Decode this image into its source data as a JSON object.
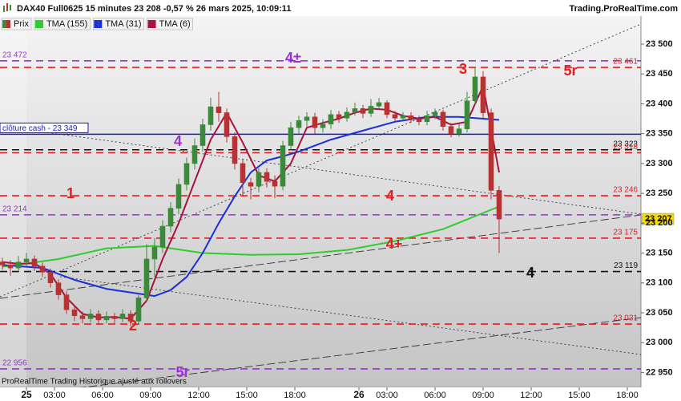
{
  "chart_data": {
    "type": "candlestick",
    "title": "DAX40 Full0625 15 minutes 23 208 -0,57 % 26 mars 2025, 10:09:11",
    "source": "Trading.ProRealTime.com",
    "footer": "ProRealTime Trading Historique ajusté aux rollovers",
    "xlim": [
      -1.65,
      38.35
    ],
    "xticks": [
      {
        "value": 0,
        "label": "25"
      },
      {
        "value": 1.75,
        "label": "03:00"
      },
      {
        "value": 4.75,
        "label": "06:00"
      },
      {
        "value": 7.75,
        "label": "09:00"
      },
      {
        "value": 10.75,
        "label": "12:00"
      },
      {
        "value": 13.75,
        "label": "15:00"
      },
      {
        "value": 16.75,
        "label": "18:00"
      },
      {
        "value": 20.75,
        "label": "26"
      },
      {
        "value": 22.5,
        "label": "03:00"
      },
      {
        "value": 25.5,
        "label": "06:00"
      },
      {
        "value": 28.5,
        "label": "09:00"
      },
      {
        "value": 31.5,
        "label": "12:00"
      },
      {
        "value": 34.5,
        "label": "15:00"
      },
      {
        "value": 37.5,
        "label": "18:00"
      }
    ],
    "ylim": [
      22925,
      23547
    ],
    "yticks": [
      {
        "value": 22950,
        "label": "22 950"
      },
      {
        "value": 23000,
        "label": "23 000"
      },
      {
        "value": 23050,
        "label": "23 050"
      },
      {
        "value": 23100,
        "label": "23 100"
      },
      {
        "value": 23150,
        "label": "23 150"
      },
      {
        "value": 23200,
        "label": "23 200"
      },
      {
        "value": 23250,
        "label": "23 250"
      },
      {
        "value": 23300,
        "label": "23 300"
      },
      {
        "value": 23350,
        "label": "23 350"
      },
      {
        "value": 23400,
        "label": "23 400"
      },
      {
        "value": 23450,
        "label": "23 450"
      },
      {
        "value": 23500,
        "label": "23 500"
      }
    ],
    "last_price": {
      "value": 23207,
      "label": "23 207",
      "color": "#f5d90a"
    },
    "price": {
      "name": "Prix",
      "up_color": "#3b8a3b",
      "down_color": "#b83232",
      "x": [
        -1.5,
        -1,
        -0.5,
        0,
        0.5,
        1,
        1.5,
        2,
        2.5,
        3,
        3.5,
        4,
        4.5,
        5,
        5.5,
        6,
        6.5,
        7,
        7.5,
        8,
        8.5,
        9,
        9.5,
        10,
        10.5,
        11,
        11.5,
        12,
        12.5,
        13,
        13.5,
        14,
        14.5,
        15,
        15.5,
        16,
        16.5,
        17,
        17.5,
        18,
        18.5,
        19,
        19.5,
        20,
        20.5,
        21,
        21.5,
        22,
        22.5,
        23,
        23.5,
        24,
        24.5,
        25,
        25.5,
        26,
        26.5,
        27,
        27.5,
        28,
        28.5,
        29,
        29.5
      ],
      "open": [
        23135,
        23130,
        23125,
        23135,
        23140,
        23128,
        23118,
        23100,
        23080,
        23055,
        23045,
        23040,
        23048,
        23038,
        23044,
        23040,
        23048,
        23036,
        23075,
        23140,
        23160,
        23195,
        23225,
        23265,
        23300,
        23330,
        23365,
        23395,
        23385,
        23345,
        23300,
        23268,
        23262,
        23285,
        23270,
        23262,
        23330,
        23360,
        23372,
        23378,
        23360,
        23366,
        23382,
        23376,
        23386,
        23392,
        23384,
        23396,
        23402,
        23382,
        23376,
        23380,
        23374,
        23370,
        23380,
        23386,
        23362,
        23350,
        23358,
        23405,
        23445,
        23385,
        23255
      ],
      "high": [
        23142,
        23138,
        23145,
        23150,
        23146,
        23134,
        23124,
        23106,
        23086,
        23062,
        23052,
        23056,
        23054,
        23052,
        23050,
        23056,
        23054,
        23082,
        23165,
        23175,
        23205,
        23235,
        23275,
        23310,
        23342,
        23375,
        23410,
        23420,
        23392,
        23352,
        23308,
        23276,
        23292,
        23292,
        23280,
        23338,
        23370,
        23380,
        23386,
        23385,
        23374,
        23390,
        23388,
        23394,
        23402,
        23398,
        23408,
        23410,
        23406,
        23388,
        23386,
        23386,
        23380,
        23388,
        23392,
        23390,
        23368,
        23366,
        23420,
        23462,
        23455,
        23392,
        23262
      ],
      "low": [
        23122,
        23112,
        23118,
        23128,
        23120,
        23110,
        23092,
        23072,
        23048,
        23036,
        23032,
        23034,
        23030,
        23032,
        23032,
        23034,
        23028,
        23030,
        23068,
        23110,
        23150,
        23185,
        23215,
        23255,
        23290,
        23320,
        23355,
        23370,
        23335,
        23290,
        23245,
        23240,
        23252,
        23260,
        23242,
        23255,
        23322,
        23350,
        23362,
        23350,
        23352,
        23358,
        23368,
        23370,
        23380,
        23376,
        23378,
        23390,
        23376,
        23370,
        23370,
        23368,
        23364,
        23364,
        23374,
        23355,
        23344,
        23345,
        23352,
        23398,
        23375,
        23240,
        23150
      ],
      "close": [
        23130,
        23125,
        23135,
        23140,
        23128,
        23118,
        23100,
        23080,
        23055,
        23045,
        23040,
        23048,
        23038,
        23044,
        23040,
        23048,
        23036,
        23075,
        23140,
        23160,
        23195,
        23225,
        23265,
        23300,
        23330,
        23365,
        23395,
        23385,
        23345,
        23300,
        23268,
        23262,
        23285,
        23270,
        23262,
        23330,
        23360,
        23372,
        23378,
        23360,
        23366,
        23382,
        23376,
        23386,
        23392,
        23384,
        23396,
        23402,
        23382,
        23376,
        23380,
        23374,
        23370,
        23380,
        23386,
        23362,
        23350,
        23358,
        23405,
        23445,
        23385,
        23255,
        23207
      ]
    },
    "series": [
      {
        "name": "TMA (155)",
        "color": "#2ecc2e",
        "x": [
          -1.5,
          2,
          5,
          8,
          11,
          14,
          17,
          20,
          23,
          26,
          29.5
        ],
        "values": [
          23127,
          23140,
          23158,
          23162,
          23150,
          23147,
          23148,
          23155,
          23170,
          23190,
          23228
        ]
      },
      {
        "name": "TMA (31)",
        "color": "#1a2fd6",
        "x": [
          -1.5,
          1,
          3,
          5,
          7,
          8,
          9,
          10,
          11,
          12,
          13,
          14,
          15,
          16,
          17,
          19,
          21,
          23,
          25,
          27,
          29.5
        ],
        "values": [
          23130,
          23125,
          23105,
          23090,
          23082,
          23078,
          23088,
          23110,
          23150,
          23200,
          23245,
          23285,
          23305,
          23312,
          23320,
          23340,
          23355,
          23370,
          23378,
          23378,
          23373
        ]
      },
      {
        "name": "TMA (6)",
        "color": "#a8123f",
        "x": [
          -1.5,
          -0.5,
          0.5,
          1.5,
          2.5,
          3.5,
          4.5,
          5.5,
          6.5,
          7.5,
          8.5,
          9.5,
          10.5,
          11.5,
          12.5,
          13.5,
          14.5,
          15.5,
          16.5,
          17.5,
          18.5,
          19.5,
          20.5,
          21.5,
          22.5,
          23.5,
          24.5,
          25.5,
          26.5,
          27.5,
          28.5,
          29.5
        ],
        "values": [
          23135,
          23132,
          23133,
          23115,
          23075,
          23048,
          23042,
          23043,
          23040,
          23070,
          23140,
          23200,
          23270,
          23340,
          23385,
          23335,
          23280,
          23270,
          23300,
          23360,
          23368,
          23375,
          23385,
          23392,
          23390,
          23380,
          23375,
          23378,
          23365,
          23370,
          23430,
          23285
        ]
      }
    ],
    "levels": [
      {
        "value": 23472,
        "label": "23 472",
        "color": "#9b30d9",
        "style": "dashed",
        "side": "left"
      },
      {
        "value": 23461,
        "label": "23 461",
        "color": "#e02020",
        "style": "dashed",
        "side": "right"
      },
      {
        "value": 23349,
        "label": "clôture cash - 23 349",
        "color": "#1a1ad0",
        "style": "solid",
        "side": "left"
      },
      {
        "value": 23323,
        "label": "23 323",
        "color": "#111111",
        "style": "dashed",
        "side": "right"
      },
      {
        "value": 23318,
        "label": "23 318",
        "color": "#e02020",
        "style": "dashed",
        "side": "right"
      },
      {
        "value": 23246,
        "label": "23 246",
        "color": "#e02020",
        "style": "dashed",
        "side": "right"
      },
      {
        "value": 23214,
        "label": "23 214",
        "color": "#9b30d9",
        "style": "dashed",
        "side": "left"
      },
      {
        "value": 23175,
        "label": "23 175",
        "color": "#e02020",
        "style": "dashed",
        "side": "right"
      },
      {
        "value": 23119,
        "label": "23 119",
        "color": "#111111",
        "style": "dashed",
        "side": "right"
      },
      {
        "value": 23031,
        "label": "23 031",
        "color": "#e02020",
        "style": "dashed",
        "side": "right"
      },
      {
        "value": 22956,
        "label": "22 956",
        "color": "#9b30d9",
        "style": "dashed",
        "side": "left"
      }
    ],
    "annotations": [
      {
        "text": "4±",
        "color": "#9b30d9"
      },
      {
        "text": "3",
        "color": "#e02020"
      },
      {
        "text": "5r",
        "color": "#e02020"
      },
      {
        "text": "4",
        "color": "#9b30d9"
      },
      {
        "text": "1",
        "color": "#e02020"
      },
      {
        "text": "4",
        "color": "#e02020"
      },
      {
        "text": "4+",
        "color": "#e02020"
      },
      {
        "text": "4",
        "color": "#111111"
      },
      {
        "text": "2",
        "color": "#e02020"
      },
      {
        "text": "5r",
        "color": "#9b30d9"
      }
    ]
  }
}
